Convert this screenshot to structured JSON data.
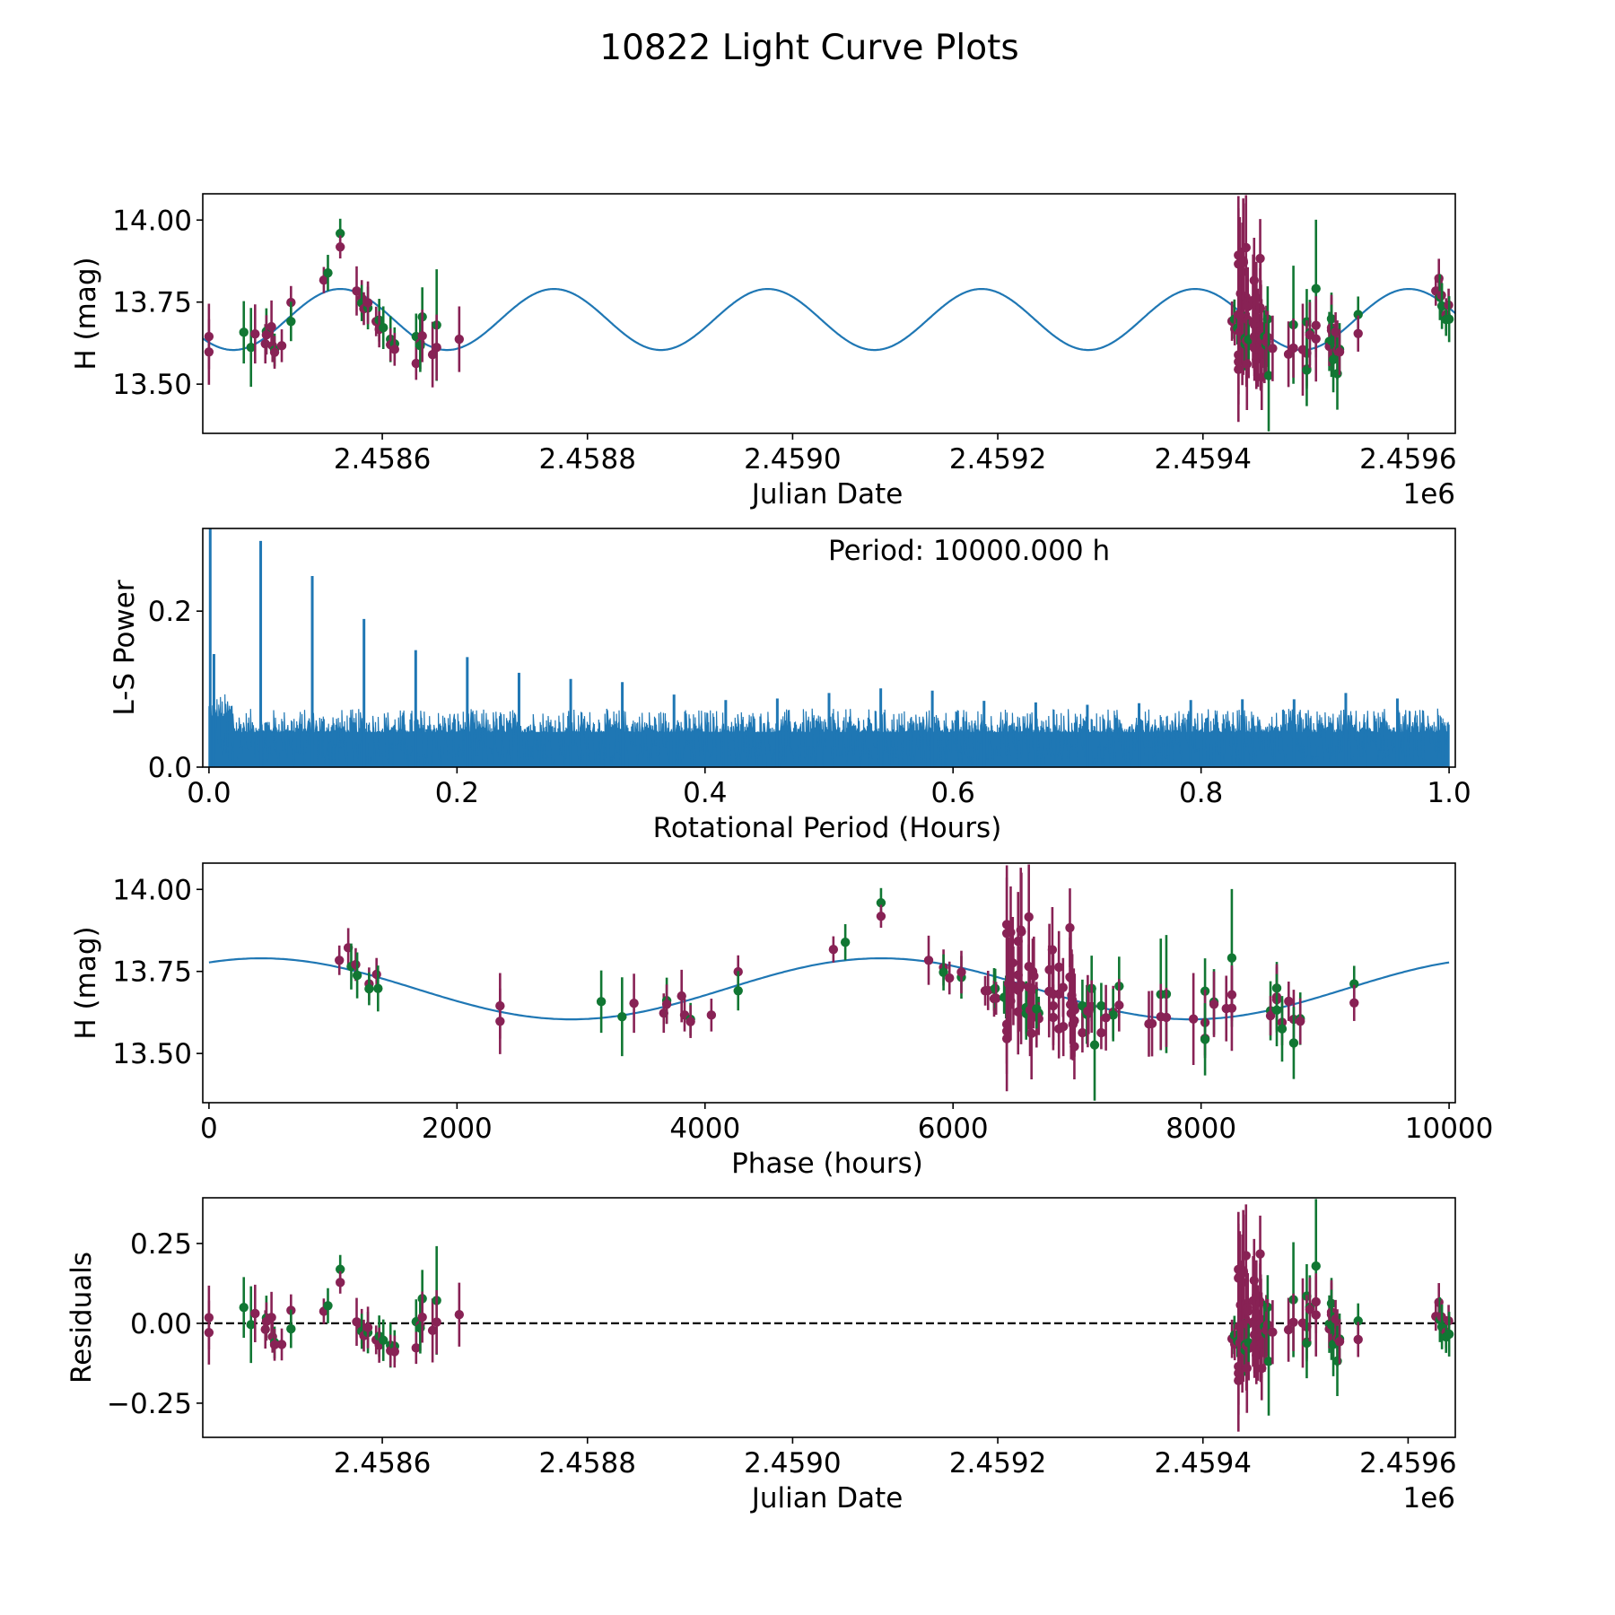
{
  "figure": {
    "title": "10822 Light Curve Plots"
  },
  "colors": {
    "filter_a": "#882255",
    "filter_b": "#117733",
    "model": "#1f77b4",
    "periodogram": "#1f77b4",
    "zero_line": "#000000"
  },
  "chart_data": [
    {
      "id": "lightcurve",
      "type": "scatter",
      "title": "",
      "xlabel": "Julian Date",
      "ylabel": "H (mag)",
      "x_offset_label": "1e6",
      "xlim": [
        2458425,
        2459646
      ],
      "ylim": [
        13.35,
        14.08
      ],
      "xticks": [
        2458600,
        2458800,
        2459000,
        2459200,
        2459400,
        2459600
      ],
      "xtick_labels": [
        "2.4586",
        "2.4588",
        "2.4590",
        "2.4592",
        "2.4594",
        "2.4596"
      ],
      "yticks": [
        13.5,
        13.75,
        14.0
      ],
      "ytick_labels": [
        "13.50",
        "13.75",
        "14.00"
      ],
      "grid": false,
      "series": [
        "observations (filter_a purple, filter_b green) with error bars",
        "sinusoidal model"
      ]
    },
    {
      "id": "periodogram",
      "type": "line",
      "title": "",
      "xlabel": "Rotational Period (Hours)",
      "ylabel": "L-S Power",
      "xlim": [
        -0.005,
        1.005
      ],
      "ylim": [
        0,
        0.306
      ],
      "xticks": [
        0.0,
        0.2,
        0.4,
        0.6,
        0.8,
        1.0
      ],
      "xtick_labels": [
        "0.0",
        "0.2",
        "0.4",
        "0.6",
        "0.8",
        "1.0"
      ],
      "yticks": [
        0.0,
        0.2
      ],
      "ytick_labels": [
        "0.0",
        "0.2"
      ],
      "annotation": "Period: 10000.000 h",
      "grid": false,
      "peaks": [
        {
          "period": 0.001,
          "power": 0.31
        },
        {
          "period": 0.004,
          "power": 0.145
        },
        {
          "period": 0.0417,
          "power": 0.29
        },
        {
          "period": 0.0833,
          "power": 0.245
        },
        {
          "period": 0.125,
          "power": 0.19
        },
        {
          "period": 0.1667,
          "power": 0.15
        },
        {
          "period": 0.2083,
          "power": 0.141
        },
        {
          "period": 0.25,
          "power": 0.121
        },
        {
          "period": 0.2917,
          "power": 0.113
        },
        {
          "period": 0.3333,
          "power": 0.109
        },
        {
          "period": 0.375,
          "power": 0.093
        },
        {
          "period": 0.4167,
          "power": 0.086
        },
        {
          "period": 0.4583,
          "power": 0.088
        },
        {
          "period": 0.5,
          "power": 0.095
        },
        {
          "period": 0.5417,
          "power": 0.101
        },
        {
          "period": 0.5833,
          "power": 0.098
        },
        {
          "period": 0.625,
          "power": 0.085
        },
        {
          "period": 0.6667,
          "power": 0.083
        },
        {
          "period": 0.7083,
          "power": 0.08
        },
        {
          "period": 0.75,
          "power": 0.082
        },
        {
          "period": 0.7917,
          "power": 0.086
        },
        {
          "period": 0.8333,
          "power": 0.087
        },
        {
          "period": 0.875,
          "power": 0.087
        },
        {
          "period": 0.9167,
          "power": 0.095
        },
        {
          "period": 0.9583,
          "power": 0.088
        }
      ],
      "noise_floor": {
        "baseline": 0.045,
        "spread": 0.03,
        "samples": 1400
      }
    },
    {
      "id": "phased",
      "type": "scatter",
      "title": "",
      "xlabel": "Phase (hours)",
      "ylabel": "H (mag)",
      "xlim": [
        -50,
        10050
      ],
      "ylim": [
        13.35,
        14.08
      ],
      "xticks": [
        0,
        2000,
        4000,
        6000,
        8000,
        10000
      ],
      "xtick_labels": [
        "0",
        "2000",
        "4000",
        "6000",
        "8000",
        "10000"
      ],
      "yticks": [
        13.5,
        13.75,
        14.0
      ],
      "ytick_labels": [
        "13.50",
        "13.75",
        "14.00"
      ],
      "grid": false,
      "fold_period_hours": 10000
    },
    {
      "id": "residuals",
      "type": "scatter",
      "title": "",
      "xlabel": "Julian Date",
      "ylabel": "Residuals",
      "x_offset_label": "1e6",
      "xlim": [
        2458425,
        2459646
      ],
      "ylim": [
        -0.357,
        0.393
      ],
      "xticks": [
        2458600,
        2458800,
        2459000,
        2459200,
        2459400,
        2459600
      ],
      "xtick_labels": [
        "2.4586",
        "2.4588",
        "2.4590",
        "2.4592",
        "2.4594",
        "2.4596"
      ],
      "yticks": [
        -0.25,
        0.0,
        0.25
      ],
      "ytick_labels": [
        "−0.25",
        "0.00",
        "0.25"
      ],
      "grid": false,
      "reference_line": 0.0
    }
  ],
  "model": {
    "mean_mag": 13.697,
    "amplitude": 0.093,
    "sine_period_hours": 5000,
    "peak_phase_hours": 420,
    "epoch_jd": 2458333.2
  },
  "observations": [
    {
      "jd": 2458431,
      "mag": 13.645,
      "err": 0.1,
      "f": "a"
    },
    {
      "jd": 2458431,
      "mag": 13.598,
      "err": 0.1,
      "f": "a"
    },
    {
      "jd": 2458465,
      "mag": 13.658,
      "err": 0.095,
      "f": "b"
    },
    {
      "jd": 2458472,
      "mag": 13.612,
      "err": 0.12,
      "f": "b"
    },
    {
      "jd": 2458476,
      "mag": 13.653,
      "err": 0.09,
      "f": "a"
    },
    {
      "jd": 2458486,
      "mag": 13.623,
      "err": 0.06,
      "f": "a"
    },
    {
      "jd": 2458487,
      "mag": 13.661,
      "err": 0.07,
      "f": "b"
    },
    {
      "jd": 2458487,
      "mag": 13.65,
      "err": 0.06,
      "f": "a"
    },
    {
      "jd": 2458492,
      "mag": 13.675,
      "err": 0.08,
      "f": "a"
    },
    {
      "jd": 2458493,
      "mag": 13.617,
      "err": 0.05,
      "f": "a"
    },
    {
      "jd": 2458495,
      "mag": 13.604,
      "err": 0.05,
      "f": "b"
    },
    {
      "jd": 2458495,
      "mag": 13.597,
      "err": 0.05,
      "f": "a"
    },
    {
      "jd": 2458502,
      "mag": 13.617,
      "err": 0.05,
      "f": "a"
    },
    {
      "jd": 2458511,
      "mag": 13.749,
      "err": 0.05,
      "f": "a"
    },
    {
      "jd": 2458511,
      "mag": 13.691,
      "err": 0.06,
      "f": "b"
    },
    {
      "jd": 2458543,
      "mag": 13.817,
      "err": 0.04,
      "f": "a"
    },
    {
      "jd": 2458547,
      "mag": 13.839,
      "err": 0.055,
      "f": "b"
    },
    {
      "jd": 2458559,
      "mag": 13.959,
      "err": 0.045,
      "f": "b"
    },
    {
      "jd": 2458559,
      "mag": 13.918,
      "err": 0.035,
      "f": "a"
    },
    {
      "jd": 2458575,
      "mag": 13.784,
      "err": 0.075,
      "f": "a"
    },
    {
      "jd": 2458580,
      "mag": 13.762,
      "err": 0.055,
      "f": "a"
    },
    {
      "jd": 2458580,
      "mag": 13.747,
      "err": 0.055,
      "f": "b"
    },
    {
      "jd": 2458582,
      "mag": 13.73,
      "err": 0.05,
      "f": "a"
    },
    {
      "jd": 2458586,
      "mag": 13.732,
      "err": 0.065,
      "f": "b"
    },
    {
      "jd": 2458586,
      "mag": 13.748,
      "err": 0.065,
      "f": "a"
    },
    {
      "jd": 2458594,
      "mag": 13.691,
      "err": 0.045,
      "f": "a"
    },
    {
      "jd": 2458597,
      "mag": 13.695,
      "err": 0.065,
      "f": "b"
    },
    {
      "jd": 2458597,
      "mag": 13.667,
      "err": 0.055,
      "f": "a"
    },
    {
      "jd": 2458601,
      "mag": 13.672,
      "err": 0.065,
      "f": "b"
    },
    {
      "jd": 2458608,
      "mag": 13.637,
      "err": 0.07,
      "f": "b"
    },
    {
      "jd": 2458608,
      "mag": 13.62,
      "err": 0.05,
      "f": "a"
    },
    {
      "jd": 2458612,
      "mag": 13.623,
      "err": 0.05,
      "f": "b"
    },
    {
      "jd": 2458612,
      "mag": 13.606,
      "err": 0.05,
      "f": "a"
    },
    {
      "jd": 2458633,
      "mag": 13.645,
      "err": 0.07,
      "f": "b"
    },
    {
      "jd": 2458633,
      "mag": 13.563,
      "err": 0.05,
      "f": "a"
    },
    {
      "jd": 2458637,
      "mag": 13.626,
      "err": 0.08,
      "f": "a"
    },
    {
      "jd": 2458637,
      "mag": 13.617,
      "err": 0.08,
      "f": "b"
    },
    {
      "jd": 2458639,
      "mag": 13.705,
      "err": 0.09,
      "f": "b"
    },
    {
      "jd": 2458639,
      "mag": 13.647,
      "err": 0.08,
      "f": "a"
    },
    {
      "jd": 2458649,
      "mag": 13.59,
      "err": 0.1,
      "f": "a"
    },
    {
      "jd": 2458653,
      "mag": 13.68,
      "err": 0.17,
      "f": "b"
    },
    {
      "jd": 2458653,
      "mag": 13.612,
      "err": 0.1,
      "f": "a"
    },
    {
      "jd": 2458675,
      "mag": 13.637,
      "err": 0.1,
      "f": "a"
    },
    {
      "jd": 2459428.3,
      "mag": 13.692,
      "err": 0.06,
      "f": "a"
    },
    {
      "jd": 2459430.7,
      "mag": 13.698,
      "err": 0.06,
      "f": "b"
    },
    {
      "jd": 2459431.0,
      "mag": 13.668,
      "err": 0.05,
      "f": "a"
    },
    {
      "jd": 2459433.7,
      "mag": 13.671,
      "err": 0.05,
      "f": "b"
    },
    {
      "jd": 2459434.6,
      "mag": 13.893,
      "err": 0.18,
      "f": "a"
    },
    {
      "jd": 2459434.6,
      "mag": 13.866,
      "err": 0.17,
      "f": "a"
    },
    {
      "jd": 2459434.6,
      "mag": 13.589,
      "err": 0.12,
      "f": "a"
    },
    {
      "jd": 2459434.6,
      "mag": 13.568,
      "err": 0.13,
      "f": "a"
    },
    {
      "jd": 2459434.6,
      "mag": 13.545,
      "err": 0.16,
      "f": "a"
    },
    {
      "jd": 2459435.2,
      "mag": 13.713,
      "err": 0.14,
      "f": "a"
    },
    {
      "jd": 2459435.9,
      "mag": 13.869,
      "err": 0.14,
      "f": "a"
    },
    {
      "jd": 2459435.9,
      "mag": 13.66,
      "err": 0.12,
      "f": "a"
    },
    {
      "jd": 2459436.6,
      "mag": 13.776,
      "err": 0.14,
      "f": "a"
    },
    {
      "jd": 2459436.8,
      "mag": 13.706,
      "err": 0.12,
      "f": "a"
    },
    {
      "jd": 2459438.4,
      "mag": 13.842,
      "err": 0.15,
      "f": "a"
    },
    {
      "jd": 2459438.4,
      "mag": 13.739,
      "err": 0.12,
      "f": "a"
    },
    {
      "jd": 2459438.4,
      "mag": 13.693,
      "err": 0.13,
      "f": "a"
    },
    {
      "jd": 2459438.4,
      "mag": 13.627,
      "err": 0.13,
      "f": "a"
    },
    {
      "jd": 2459438.7,
      "mag": 13.697,
      "err": 0.13,
      "f": "a"
    },
    {
      "jd": 2459439.3,
      "mag": 13.876,
      "err": 0.19,
      "f": "a"
    },
    {
      "jd": 2459439.5,
      "mag": 13.871,
      "err": 0.18,
      "f": "a"
    },
    {
      "jd": 2459439.4,
      "mag": 13.708,
      "err": 0.18,
      "f": "a"
    },
    {
      "jd": 2459441.1,
      "mag": 13.64,
      "err": 0.08,
      "f": "b"
    },
    {
      "jd": 2459441.1,
      "mag": 13.622,
      "err": 0.08,
      "f": "b"
    },
    {
      "jd": 2459442.0,
      "mag": 13.916,
      "err": 0.16,
      "f": "a"
    },
    {
      "jd": 2459442.0,
      "mag": 13.765,
      "err": 0.12,
      "f": "a"
    },
    {
      "jd": 2459442.0,
      "mag": 13.702,
      "err": 0.13,
      "f": "a"
    },
    {
      "jd": 2459442.4,
      "mag": 13.632,
      "err": 0.14,
      "f": "a"
    },
    {
      "jd": 2459442.9,
      "mag": 13.561,
      "err": 0.14,
      "f": "a"
    },
    {
      "jd": 2459443.3,
      "mag": 13.75,
      "err": 0.1,
      "f": "a"
    },
    {
      "jd": 2459443.7,
      "mag": 13.736,
      "err": 0.12,
      "f": "a"
    },
    {
      "jd": 2459443.6,
      "mag": 13.696,
      "err": 0.12,
      "f": "a"
    },
    {
      "jd": 2459444.6,
      "mag": 13.618,
      "err": 0.1,
      "f": "a"
    },
    {
      "jd": 2459444.6,
      "mag": 13.636,
      "err": 0.06,
      "f": "b"
    },
    {
      "jd": 2459448.9,
      "mag": 13.755,
      "err": 0.14,
      "f": "a"
    },
    {
      "jd": 2459448.8,
      "mag": 13.689,
      "err": 0.14,
      "f": "a"
    },
    {
      "jd": 2459449.9,
      "mag": 13.816,
      "err": 0.13,
      "f": "a"
    },
    {
      "jd": 2459450.2,
      "mag": 13.681,
      "err": 0.14,
      "f": "a"
    },
    {
      "jd": 2459450.2,
      "mag": 13.645,
      "err": 0.12,
      "f": "a"
    },
    {
      "jd": 2459450.2,
      "mag": 13.61,
      "err": 0.1,
      "f": "a"
    },
    {
      "jd": 2459452.1,
      "mag": 13.763,
      "err": 0.11,
      "f": "a"
    },
    {
      "jd": 2459452.1,
      "mag": 13.681,
      "err": 0.13,
      "f": "a"
    },
    {
      "jd": 2459452.1,
      "mag": 13.575,
      "err": 0.09,
      "f": "a"
    },
    {
      "jd": 2459453.5,
      "mag": 13.701,
      "err": 0.09,
      "f": "a"
    },
    {
      "jd": 2459453.6,
      "mag": 13.582,
      "err": 0.09,
      "f": "a"
    },
    {
      "jd": 2459455.8,
      "mag": 13.883,
      "err": 0.12,
      "f": "a"
    },
    {
      "jd": 2459455.8,
      "mag": 13.733,
      "err": 0.12,
      "f": "a"
    },
    {
      "jd": 2459456.1,
      "mag": 13.73,
      "err": 0.14,
      "f": "a"
    },
    {
      "jd": 2459456.0,
      "mag": 13.649,
      "err": 0.12,
      "f": "a"
    },
    {
      "jd": 2459456.2,
      "mag": 13.622,
      "err": 0.14,
      "f": "a"
    },
    {
      "jd": 2459456.4,
      "mag": 13.677,
      "err": 0.14,
      "f": "a"
    },
    {
      "jd": 2459456.6,
      "mag": 13.663,
      "err": 0.14,
      "f": "a"
    },
    {
      "jd": 2459456.8,
      "mag": 13.589,
      "err": 0.11,
      "f": "a"
    },
    {
      "jd": 2459457.1,
      "mag": 13.649,
      "err": 0.11,
      "f": "a"
    },
    {
      "jd": 2459457.3,
      "mag": 13.6,
      "err": 0.11,
      "f": "a"
    },
    {
      "jd": 2459457.3,
      "mag": 13.521,
      "err": 0.1,
      "f": "a"
    },
    {
      "jd": 2459457.4,
      "mag": 13.633,
      "err": 0.11,
      "f": "a"
    },
    {
      "jd": 2459460.0,
      "mag": 13.645,
      "err": 0.08,
      "f": "b"
    },
    {
      "jd": 2459460.0,
      "mag": 13.563,
      "err": 0.06,
      "f": "a"
    },
    {
      "jd": 2459461.5,
      "mag": 13.619,
      "err": 0.09,
      "f": "b"
    },
    {
      "jd": 2459461.8,
      "mag": 13.629,
      "err": 0.11,
      "f": "a"
    },
    {
      "jd": 2459462.1,
      "mag": 13.629,
      "err": 0.07,
      "f": "a"
    },
    {
      "jd": 2459463.1,
      "mag": 13.698,
      "err": 0.1,
      "f": "b"
    },
    {
      "jd": 2459463.1,
      "mag": 13.643,
      "err": 0.08,
      "f": "a"
    },
    {
      "jd": 2459464.1,
      "mag": 13.526,
      "err": 0.17,
      "f": "b"
    },
    {
      "jd": 2459467.9,
      "mag": 13.609,
      "err": 0.1,
      "f": "a"
    },
    {
      "jd": 2459483.4,
      "mag": 13.591,
      "err": 0.1,
      "f": "a"
    },
    {
      "jd": 2459488.2,
      "mag": 13.681,
      "err": 0.18,
      "f": "b"
    },
    {
      "jd": 2459488.2,
      "mag": 13.61,
      "err": 0.09,
      "f": "a"
    },
    {
      "jd": 2459497.3,
      "mag": 13.605,
      "err": 0.14,
      "f": "a"
    },
    {
      "jd": 2459501.2,
      "mag": 13.69,
      "err": 0.1,
      "f": "b"
    },
    {
      "jd": 2459501.2,
      "mag": 13.594,
      "err": 0.1,
      "f": "a"
    },
    {
      "jd": 2459501.2,
      "mag": 13.546,
      "err": 0.06,
      "f": "a"
    },
    {
      "jd": 2459501.2,
      "mag": 13.543,
      "err": 0.11,
      "f": "b"
    },
    {
      "jd": 2459504.2,
      "mag": 13.657,
      "err": 0.1,
      "f": "b"
    },
    {
      "jd": 2459504.2,
      "mag": 13.65,
      "err": 0.1,
      "f": "a"
    },
    {
      "jd": 2459510.2,
      "mag": 13.791,
      "err": 0.21,
      "f": "b"
    },
    {
      "jd": 2459510.2,
      "mag": 13.679,
      "err": 0.08,
      "f": "a"
    },
    {
      "jd": 2459510.2,
      "mag": 13.638,
      "err": 0.13,
      "f": "a"
    },
    {
      "jd": 2459523.2,
      "mag": 13.63,
      "err": 0.09,
      "f": "b"
    },
    {
      "jd": 2459523.2,
      "mag": 13.615,
      "err": 0.06,
      "f": "a"
    },
    {
      "jd": 2459525.3,
      "mag": 13.699,
      "err": 0.08,
      "f": "b"
    },
    {
      "jd": 2459525.3,
      "mag": 13.672,
      "err": 0.1,
      "f": "a"
    },
    {
      "jd": 2459525.3,
      "mag": 13.664,
      "err": 0.1,
      "f": "a"
    },
    {
      "jd": 2459525.3,
      "mag": 13.632,
      "err": 0.11,
      "f": "b"
    },
    {
      "jd": 2459527.1,
      "mag": 13.595,
      "err": 0.07,
      "f": "a"
    },
    {
      "jd": 2459527.1,
      "mag": 13.575,
      "err": 0.1,
      "f": "b"
    },
    {
      "jd": 2459529.3,
      "mag": 13.659,
      "err": 0.06,
      "f": "a"
    },
    {
      "jd": 2459531.0,
      "mag": 13.604,
      "err": 0.09,
      "f": "a"
    },
    {
      "jd": 2459531.0,
      "mag": 13.532,
      "err": 0.11,
      "f": "b"
    },
    {
      "jd": 2459533.2,
      "mag": 13.606,
      "err": 0.08,
      "f": "b"
    },
    {
      "jd": 2459533.2,
      "mag": 13.598,
      "err": 0.07,
      "f": "a"
    },
    {
      "jd": 2459551.3,
      "mag": 13.712,
      "err": 0.055,
      "f": "b"
    },
    {
      "jd": 2459551.3,
      "mag": 13.654,
      "err": 0.055,
      "f": "a"
    },
    {
      "jd": 2459627.0,
      "mag": 13.784,
      "err": 0.045,
      "f": "a"
    },
    {
      "jd": 2459630.0,
      "mag": 13.822,
      "err": 0.06,
      "f": "a"
    },
    {
      "jd": 2459631.0,
      "mag": 13.765,
      "err": 0.07,
      "f": "b"
    },
    {
      "jd": 2459632.5,
      "mag": 13.771,
      "err": 0.05,
      "f": "a"
    },
    {
      "jd": 2459633.0,
      "mag": 13.738,
      "err": 0.07,
      "f": "b"
    },
    {
      "jd": 2459637.0,
      "mag": 13.712,
      "err": 0.05,
      "f": "a"
    },
    {
      "jd": 2459637.0,
      "mag": 13.697,
      "err": 0.05,
      "f": "b"
    },
    {
      "jd": 2459639.5,
      "mag": 13.741,
      "err": 0.05,
      "f": "a"
    },
    {
      "jd": 2459640.0,
      "mag": 13.698,
      "err": 0.07,
      "f": "b"
    }
  ]
}
